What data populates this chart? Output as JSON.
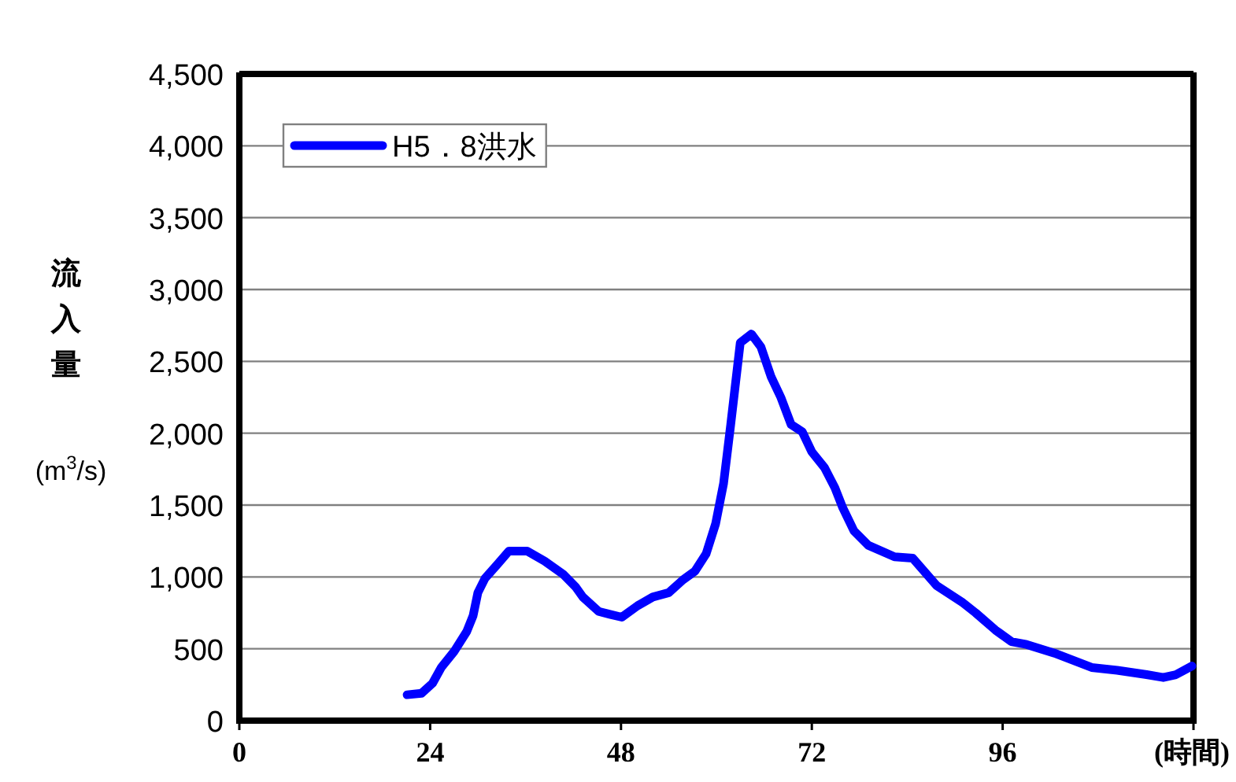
{
  "chart_data": {
    "type": "line",
    "ylabel": "流入量 (m$^{3}$/s)",
    "x": [
      21.1,
      22.9,
      24.3,
      25.4,
      27,
      28.6,
      29.4,
      30,
      30.9,
      32.5,
      33.9,
      36.2,
      38.4,
      40.7,
      42.3,
      43.2,
      45.2,
      46.6,
      48.1,
      50.1,
      52,
      54,
      55.8,
      57.3,
      58.7,
      59.9,
      60.9,
      61.8,
      63,
      64.4,
      65.6,
      66.9,
      68.1,
      69.4,
      70.8,
      72,
      73.6,
      74.9,
      75.9,
      77.3,
      79.1,
      82.4,
      84.7,
      87.7,
      91,
      92.6,
      95.1,
      97.1,
      99,
      102.5,
      107.2,
      110.4,
      114.1,
      116.2,
      117.8,
      119.8
    ],
    "series": [
      {
        "name": "H5．8洪水",
        "color": "#0000ff",
        "values": [
          180,
          190,
          260,
          370,
          480,
          620,
          730,
          890,
          990,
          1090,
          1180,
          1180,
          1110,
          1020,
          930,
          860,
          760,
          740,
          720,
          800,
          860,
          890,
          980,
          1040,
          1160,
          1370,
          1650,
          2060,
          2630,
          2690,
          2600,
          2390,
          2250,
          2060,
          2010,
          1870,
          1760,
          1620,
          1480,
          1320,
          1220,
          1140,
          1130,
          940,
          820,
          750,
          630,
          550,
          530,
          470,
          370,
          350,
          320,
          300,
          320,
          380
        ]
      }
    ],
    "xlim": [
      0,
      120
    ],
    "xticks": [
      0,
      24,
      48,
      72,
      96,
      {
        "value": 120,
        "label": "(時間)"
      }
    ],
    "ylim": [
      0,
      4500
    ],
    "yticks": [
      {
        "value": 0,
        "label": "0"
      },
      {
        "value": 500,
        "label": "500"
      },
      {
        "value": 1000,
        "label": "1,000"
      },
      {
        "value": 1500,
        "label": "1,500"
      },
      {
        "value": 2000,
        "label": "2,000"
      },
      {
        "value": 2500,
        "label": "2,500"
      },
      {
        "value": 3000,
        "label": "3,000"
      },
      {
        "value": 3500,
        "label": "3,500"
      },
      {
        "value": 4000,
        "label": "4,000"
      },
      {
        "value": 4500,
        "label": "4,500"
      }
    ],
    "grid": "y",
    "legend": "top left",
    "marker": "none",
    "line_style": "solid"
  }
}
